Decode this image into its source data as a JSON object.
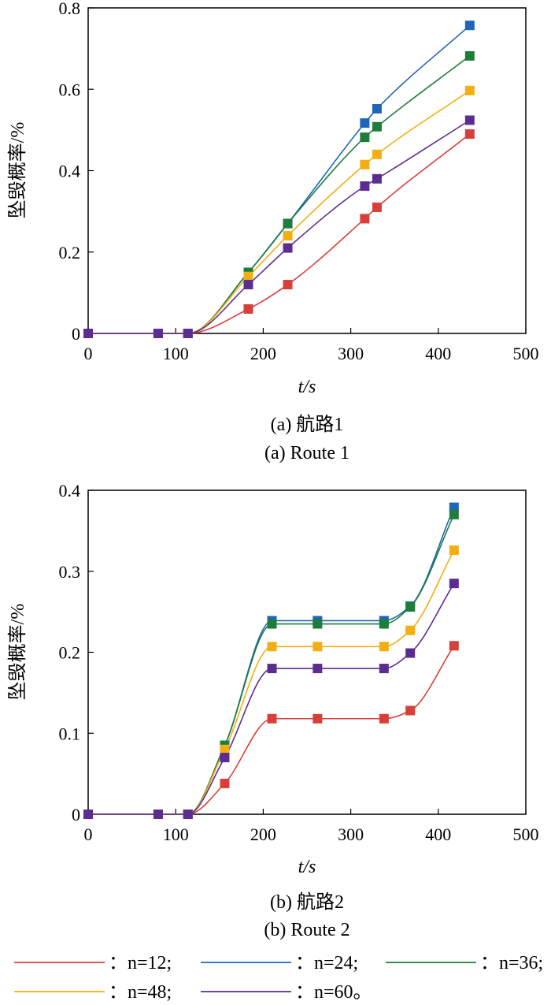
{
  "chart_data": [
    {
      "type": "line",
      "caption_cn": "(a) 航路1",
      "caption_en": "(a) Route 1",
      "xlabel": "t/s",
      "ylabel": "坠毁概率/%",
      "xlim": [
        0,
        500
      ],
      "ylim": [
        0,
        0.8
      ],
      "xticks": [
        "0",
        "100",
        "200",
        "300",
        "400",
        "500"
      ],
      "yticks": [
        "0",
        "0.2",
        "0.4",
        "0.6",
        "0.8"
      ],
      "series": [
        {
          "name": "n=12",
          "color": "#d7403a",
          "points": [
            [
              0,
              0
            ],
            [
              80,
              0
            ],
            [
              114,
              0
            ],
            [
              183,
              0.06
            ],
            [
              228,
              0.12
            ],
            [
              316,
              0.282
            ],
            [
              330,
              0.31
            ],
            [
              436,
              0.49
            ]
          ]
        },
        {
          "name": "n=24",
          "color": "#1f66b8",
          "points": [
            [
              0,
              0
            ],
            [
              80,
              0
            ],
            [
              114,
              0
            ],
            [
              183,
              0.15
            ],
            [
              228,
              0.27
            ],
            [
              316,
              0.517
            ],
            [
              330,
              0.552
            ],
            [
              436,
              0.757
            ]
          ]
        },
        {
          "name": "n=36",
          "color": "#1e7d3a",
          "points": [
            [
              0,
              0
            ],
            [
              80,
              0
            ],
            [
              114,
              0
            ],
            [
              183,
              0.15
            ],
            [
              228,
              0.27
            ],
            [
              316,
              0.482
            ],
            [
              330,
              0.508
            ],
            [
              436,
              0.682
            ]
          ]
        },
        {
          "name": "n=48",
          "color": "#f2ae12",
          "points": [
            [
              0,
              0
            ],
            [
              80,
              0
            ],
            [
              114,
              0
            ],
            [
              183,
              0.14
            ],
            [
              228,
              0.24
            ],
            [
              316,
              0.415
            ],
            [
              330,
              0.44
            ],
            [
              436,
              0.597
            ]
          ]
        },
        {
          "name": "n=60",
          "color": "#5c2d91",
          "points": [
            [
              0,
              0
            ],
            [
              80,
              0
            ],
            [
              114,
              0
            ],
            [
              183,
              0.12
            ],
            [
              228,
              0.21
            ],
            [
              316,
              0.362
            ],
            [
              330,
              0.38
            ],
            [
              436,
              0.524
            ]
          ]
        }
      ]
    },
    {
      "type": "line",
      "caption_cn": "(b) 航路2",
      "caption_en": "(b) Route 2",
      "xlabel": "t/s",
      "ylabel": "坠毁概率/%",
      "xlim": [
        0,
        500
      ],
      "ylim": [
        0,
        0.4
      ],
      "xticks": [
        "0",
        "100",
        "200",
        "300",
        "400",
        "500"
      ],
      "yticks": [
        "0",
        "0.1",
        "0.2",
        "0.3",
        "0.4"
      ],
      "series": [
        {
          "name": "n=12",
          "color": "#d7403a",
          "points": [
            [
              0,
              0
            ],
            [
              80,
              0
            ],
            [
              114,
              0
            ],
            [
              156,
              0.038
            ],
            [
              210,
              0.118
            ],
            [
              262,
              0.118
            ],
            [
              338,
              0.118
            ],
            [
              368,
              0.128
            ],
            [
              418,
              0.208
            ]
          ]
        },
        {
          "name": "n=24",
          "color": "#1f66b8",
          "points": [
            [
              0,
              0
            ],
            [
              80,
              0
            ],
            [
              114,
              0
            ],
            [
              156,
              0.085
            ],
            [
              210,
              0.239
            ],
            [
              262,
              0.239
            ],
            [
              338,
              0.239
            ],
            [
              368,
              0.257
            ],
            [
              418,
              0.379
            ]
          ]
        },
        {
          "name": "n=36",
          "color": "#1e7d3a",
          "points": [
            [
              0,
              0
            ],
            [
              80,
              0
            ],
            [
              114,
              0
            ],
            [
              156,
              0.085
            ],
            [
              210,
              0.235
            ],
            [
              262,
              0.235
            ],
            [
              338,
              0.235
            ],
            [
              368,
              0.256
            ],
            [
              418,
              0.37
            ]
          ]
        },
        {
          "name": "n=48",
          "color": "#f2ae12",
          "points": [
            [
              0,
              0
            ],
            [
              80,
              0
            ],
            [
              114,
              0
            ],
            [
              156,
              0.08
            ],
            [
              210,
              0.207
            ],
            [
              262,
              0.207
            ],
            [
              338,
              0.207
            ],
            [
              368,
              0.227
            ],
            [
              418,
              0.326
            ]
          ]
        },
        {
          "name": "n=60",
          "color": "#5c2d91",
          "points": [
            [
              0,
              0
            ],
            [
              80,
              0
            ],
            [
              114,
              0
            ],
            [
              156,
              0.07
            ],
            [
              210,
              0.18
            ],
            [
              262,
              0.18
            ],
            [
              338,
              0.18
            ],
            [
              368,
              0.199
            ],
            [
              418,
              0.285
            ]
          ]
        }
      ]
    }
  ],
  "legend": [
    {
      "label": "：n=12;",
      "color": "#d7403a"
    },
    {
      "label": "：n=24;",
      "color": "#1f66b8"
    },
    {
      "label": "：n=36;",
      "color": "#1e7d3a"
    },
    {
      "label": "：n=48;",
      "color": "#f2ae12"
    },
    {
      "label": "：n=60。",
      "color": "#5c2d91"
    }
  ]
}
